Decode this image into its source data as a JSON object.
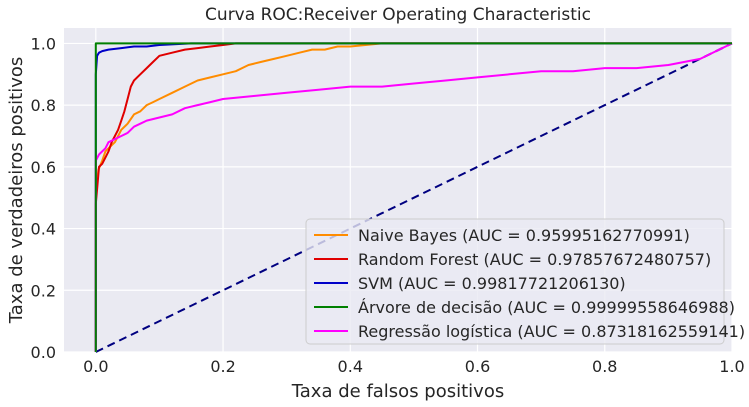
{
  "chart_data": {
    "type": "line",
    "title": "Curva ROC:Receiver Operating Characteristic",
    "xlabel": "Taxa de falsos positivos",
    "ylabel": "Taxa de verdadeiros positivos",
    "xlim": [
      -0.05,
      1.0
    ],
    "ylim": [
      0.0,
      1.05
    ],
    "xticks": [
      "0.0",
      "0.2",
      "0.4",
      "0.6",
      "0.8",
      "1.0"
    ],
    "yticks": [
      "0.0",
      "0.2",
      "0.4",
      "0.6",
      "0.8",
      "1.0"
    ],
    "grid": true,
    "legend_position": "lower-right",
    "colors": {
      "background": "#eaeaf2",
      "grid": "#ffffff",
      "text": "#262626"
    },
    "series": [
      {
        "name": "Naive Bayes (AUC = 0.95995162770991)",
        "color": "#ff8c00",
        "points": [
          [
            0,
            0
          ],
          [
            0,
            0.5
          ],
          [
            0.002,
            0.55
          ],
          [
            0.004,
            0.59
          ],
          [
            0.01,
            0.62
          ],
          [
            0.015,
            0.65
          ],
          [
            0.02,
            0.66
          ],
          [
            0.03,
            0.68
          ],
          [
            0.04,
            0.72
          ],
          [
            0.05,
            0.74
          ],
          [
            0.06,
            0.77
          ],
          [
            0.07,
            0.78
          ],
          [
            0.08,
            0.8
          ],
          [
            0.09,
            0.81
          ],
          [
            0.1,
            0.82
          ],
          [
            0.12,
            0.84
          ],
          [
            0.14,
            0.86
          ],
          [
            0.16,
            0.88
          ],
          [
            0.18,
            0.89
          ],
          [
            0.2,
            0.9
          ],
          [
            0.22,
            0.91
          ],
          [
            0.24,
            0.93
          ],
          [
            0.26,
            0.94
          ],
          [
            0.28,
            0.95
          ],
          [
            0.3,
            0.96
          ],
          [
            0.32,
            0.97
          ],
          [
            0.34,
            0.98
          ],
          [
            0.36,
            0.98
          ],
          [
            0.38,
            0.99
          ],
          [
            0.4,
            0.99
          ],
          [
            0.45,
            1.0
          ],
          [
            0.52,
            1.0
          ],
          [
            1.0,
            1.0
          ]
        ]
      },
      {
        "name": "Random Forest (AUC = 0.97857672480757)",
        "color": "#e00000",
        "points": [
          [
            0,
            0
          ],
          [
            0,
            0.48
          ],
          [
            0.003,
            0.55
          ],
          [
            0.005,
            0.6
          ],
          [
            0.01,
            0.61
          ],
          [
            0.015,
            0.63
          ],
          [
            0.02,
            0.65
          ],
          [
            0.025,
            0.68
          ],
          [
            0.03,
            0.7
          ],
          [
            0.035,
            0.72
          ],
          [
            0.04,
            0.75
          ],
          [
            0.045,
            0.78
          ],
          [
            0.05,
            0.82
          ],
          [
            0.055,
            0.86
          ],
          [
            0.06,
            0.88
          ],
          [
            0.07,
            0.9
          ],
          [
            0.08,
            0.92
          ],
          [
            0.09,
            0.94
          ],
          [
            0.1,
            0.96
          ],
          [
            0.12,
            0.97
          ],
          [
            0.14,
            0.98
          ],
          [
            0.16,
            0.985
          ],
          [
            0.18,
            0.99
          ],
          [
            0.2,
            0.995
          ],
          [
            0.22,
            1.0
          ],
          [
            1.0,
            1.0
          ]
        ]
      },
      {
        "name": "SVM (AUC = 0.99817721206130)",
        "color": "#0000c8",
        "points": [
          [
            0,
            0
          ],
          [
            0,
            0.9
          ],
          [
            0.002,
            0.96
          ],
          [
            0.005,
            0.97
          ],
          [
            0.01,
            0.975
          ],
          [
            0.02,
            0.98
          ],
          [
            0.04,
            0.985
          ],
          [
            0.06,
            0.99
          ],
          [
            0.08,
            0.99
          ],
          [
            0.1,
            0.995
          ],
          [
            0.15,
            1.0
          ],
          [
            1.0,
            1.0
          ]
        ]
      },
      {
        "name": "Árvore de decisão (AUC = 0.99999558646988)",
        "color": "#008000",
        "points": [
          [
            0,
            0
          ],
          [
            0,
            1.0
          ],
          [
            1.0,
            1.0
          ]
        ]
      },
      {
        "name": "Regressão logística (AUC = 0.87318162559141)",
        "color": "#ff00ff",
        "points": [
          [
            0,
            0
          ],
          [
            0,
            0.62
          ],
          [
            0.005,
            0.64
          ],
          [
            0.01,
            0.65
          ],
          [
            0.015,
            0.66
          ],
          [
            0.02,
            0.68
          ],
          [
            0.03,
            0.69
          ],
          [
            0.04,
            0.7
          ],
          [
            0.05,
            0.71
          ],
          [
            0.06,
            0.73
          ],
          [
            0.07,
            0.74
          ],
          [
            0.08,
            0.75
          ],
          [
            0.1,
            0.76
          ],
          [
            0.12,
            0.77
          ],
          [
            0.14,
            0.79
          ],
          [
            0.16,
            0.8
          ],
          [
            0.18,
            0.81
          ],
          [
            0.2,
            0.82
          ],
          [
            0.25,
            0.83
          ],
          [
            0.3,
            0.84
          ],
          [
            0.35,
            0.85
          ],
          [
            0.4,
            0.86
          ],
          [
            0.45,
            0.86
          ],
          [
            0.5,
            0.87
          ],
          [
            0.55,
            0.88
          ],
          [
            0.6,
            0.89
          ],
          [
            0.65,
            0.9
          ],
          [
            0.7,
            0.91
          ],
          [
            0.75,
            0.91
          ],
          [
            0.8,
            0.92
          ],
          [
            0.85,
            0.92
          ],
          [
            0.9,
            0.93
          ],
          [
            0.95,
            0.95
          ],
          [
            1.0,
            1.0
          ]
        ]
      },
      {
        "name": "",
        "color": "#000080",
        "dashed": true,
        "points": [
          [
            0,
            0
          ],
          [
            1.0,
            1.0
          ]
        ]
      }
    ]
  }
}
